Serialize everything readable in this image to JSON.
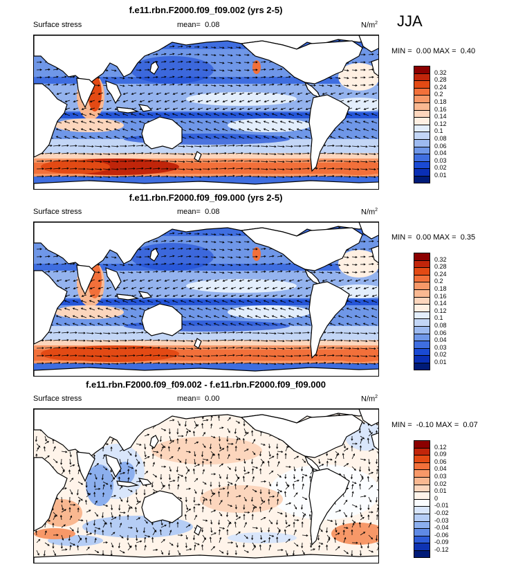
{
  "season": "JJA",
  "units_main": "N/m",
  "units_sup": "2",
  "colorbar_abs": {
    "labels": [
      "0.32",
      "0.28",
      "0.24",
      "0.2",
      "0.18",
      "0.16",
      "0.14",
      "0.12",
      "0.1",
      "0.08",
      "0.06",
      "0.04",
      "0.03",
      "0.02",
      "0.01"
    ],
    "colors": [
      "#8b0000",
      "#c1250a",
      "#e34a14",
      "#f2703a",
      "#f79868",
      "#f9b891",
      "#fcd6bd",
      "#fff0e3",
      "#e3eefc",
      "#c3d6f6",
      "#9dbaf0",
      "#6f97e8",
      "#3f6ee0",
      "#1a4ad4",
      "#0a2fb5",
      "#001b78"
    ]
  },
  "colorbar_diff": {
    "labels": [
      "0.12",
      "0.09",
      "0.06",
      "0.04",
      "0.03",
      "0.02",
      "0.01",
      "0",
      "-0.01",
      "-0.02",
      "-0.03",
      "-0.04",
      "-0.06",
      "-0.09",
      "-0.12"
    ],
    "colors": [
      "#8b0000",
      "#c1250a",
      "#e34a14",
      "#f2703a",
      "#f79868",
      "#f9b891",
      "#fcd6bd",
      "#fff4ea",
      "#fbfdff",
      "#d9e6fb",
      "#b5cdf5",
      "#8cafee",
      "#5f8ae5",
      "#2d5bd8",
      "#0e33b3",
      "#001b78"
    ]
  },
  "panels": [
    {
      "title": "f.e11.rbn.F2000.f09_f09.002 (yrs 2-5)",
      "left_label": "Surface stress",
      "mean_label": "mean=",
      "mean_value": "0.08",
      "min_label": "MIN =",
      "min_value": "0.00",
      "max_label": "MAX =",
      "max_value": "0.40"
    },
    {
      "title": "f.e11.rbn.F2000.f09_f09.000 (yrs 2-5)",
      "left_label": "Surface stress",
      "mean_label": "mean=",
      "mean_value": "0.08",
      "min_label": "MIN =",
      "min_value": "0.00",
      "max_label": "MAX =",
      "max_value": "0.35"
    },
    {
      "title": "f.e11.rbn.F2000.f09_f09.002 - f.e11.rbn.F2000.f09_f09.000",
      "left_label": "Surface stress",
      "mean_label": "mean=",
      "mean_value": "0.00",
      "min_label": "MIN =",
      "min_value": "-0.10",
      "max_label": "MAX =",
      "max_value": "0.07"
    }
  ],
  "chart_data": {
    "type": "heatmap",
    "variable": "Surface stress",
    "season": "JJA",
    "units": "N/m2",
    "panels": [
      {
        "title": "f.e11.rbn.F2000.f09_f09.002 (yrs 2-5)",
        "mean": 0.08,
        "min": 0.0,
        "max": 0.4
      },
      {
        "title": "f.e11.rbn.F2000.f09_f09.000 (yrs 2-5)",
        "mean": 0.08,
        "min": 0.0,
        "max": 0.35
      },
      {
        "title": "f.e11.rbn.F2000.f09_f09.002 - f.e11.rbn.F2000.f09_f09.000",
        "mean": 0.0,
        "min": -0.1,
        "max": 0.07
      }
    ],
    "contour_levels_abs": [
      0.01,
      0.02,
      0.03,
      0.04,
      0.06,
      0.08,
      0.1,
      0.12,
      0.14,
      0.16,
      0.18,
      0.2,
      0.24,
      0.28,
      0.32
    ],
    "contour_levels_diff": [
      -0.12,
      -0.09,
      -0.06,
      -0.04,
      -0.03,
      -0.02,
      -0.01,
      0,
      0.01,
      0.02,
      0.03,
      0.04,
      0.06,
      0.09,
      0.12
    ]
  }
}
